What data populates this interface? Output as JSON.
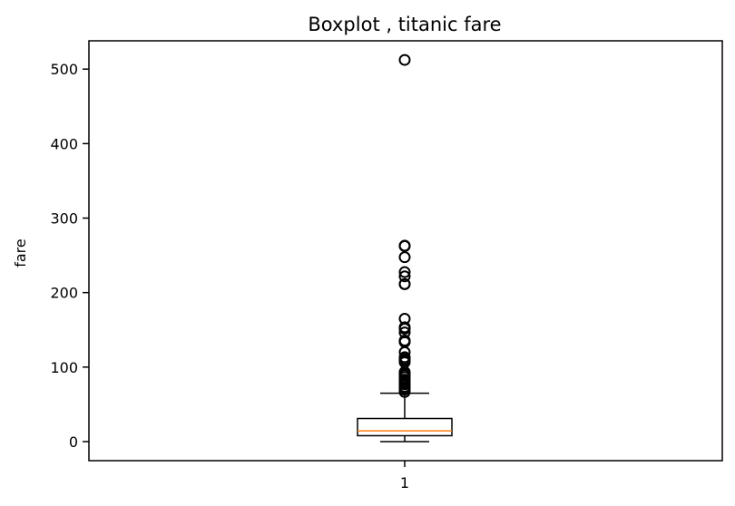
{
  "chart_data": {
    "type": "boxplot",
    "title": "Boxplot , titanic fare",
    "xlabel": "",
    "ylabel": "fare",
    "categories": [
      "1"
    ],
    "ylim": [
      -25.6,
      538
    ],
    "yticks": [
      0,
      100,
      200,
      300,
      400,
      500
    ],
    "grid": false,
    "box": {
      "category": "1",
      "whisker_low": 0,
      "q1": 7.91,
      "median": 14.45,
      "q3": 31,
      "whisker_high": 65,
      "outliers": [
        66.6,
        69.55,
        71.28,
        73.5,
        76.73,
        77.29,
        78.85,
        79.2,
        79.65,
        82.17,
        83.16,
        86.5,
        89.1,
        90,
        91.08,
        93.5,
        106.43,
        108.9,
        110.88,
        113.28,
        120,
        133.65,
        134.5,
        135.63,
        146.52,
        151.55,
        153.46,
        164.87,
        211.34,
        211.5,
        221.78,
        227.53,
        247.52,
        262.38,
        263,
        512.33
      ]
    },
    "colors": {
      "box": "#000000",
      "median": "#ff7f0e",
      "outlier": "#000000"
    }
  }
}
